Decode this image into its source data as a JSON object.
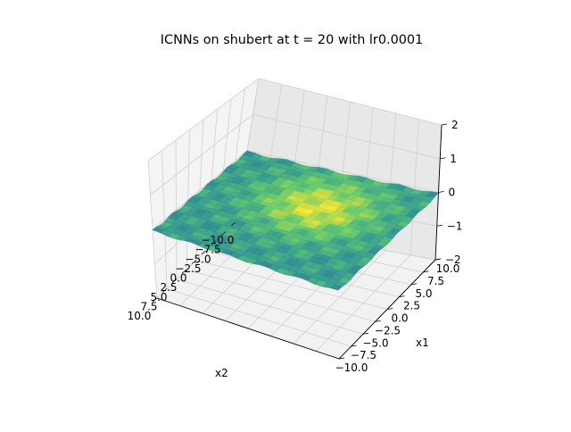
{
  "chart_data": {
    "type": "surface3d",
    "title": "ICNNs on shubert at t = 20 with lr0.0001",
    "xlabel": "x1",
    "ylabel": "x2",
    "zlabel": "",
    "xlim": [
      -10,
      10
    ],
    "ylim": [
      -10,
      10
    ],
    "zlim": [
      -2,
      2
    ],
    "x_ticks": [
      "−10.0",
      "−7.5",
      "−5.0",
      "−2.5",
      "0.0",
      "2.5",
      "5.0",
      "7.5",
      "10.0"
    ],
    "y_ticks": [
      "10.0",
      "7.5",
      "5.0",
      "2.5",
      "0.0",
      "−2.5",
      "−5.0",
      "−7.5",
      "−10.0"
    ],
    "z_ticks": [
      "2",
      "1",
      "0",
      "−1",
      "−2"
    ],
    "colormap": "viridis",
    "grid": true,
    "surface_z_range": [
      -0.12,
      0.05
    ]
  }
}
